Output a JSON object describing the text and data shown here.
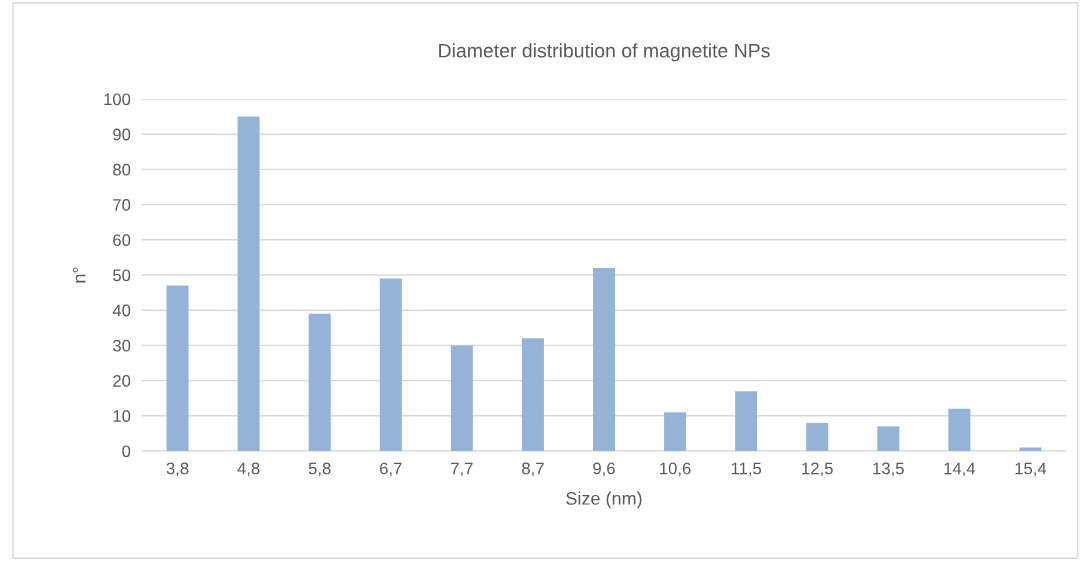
{
  "chart_data": {
    "type": "bar",
    "title": "Diameter distribution of magnetite NPs",
    "xlabel": "Size (nm)",
    "ylabel": "n°",
    "categories": [
      "3,8",
      "4,8",
      "5,8",
      "6,7",
      "7,7",
      "8,7",
      "9,6",
      "10,6",
      "11,5",
      "12,5",
      "13,5",
      "14,4",
      "15,4"
    ],
    "values": [
      47,
      95,
      39,
      49,
      30,
      32,
      52,
      11,
      17,
      8,
      7,
      12,
      1
    ],
    "color": "#95b3d7",
    "ylim": [
      0,
      100
    ],
    "yticks": [
      0,
      10,
      20,
      30,
      40,
      50,
      60,
      70,
      80,
      90,
      100
    ],
    "grid": "y"
  }
}
